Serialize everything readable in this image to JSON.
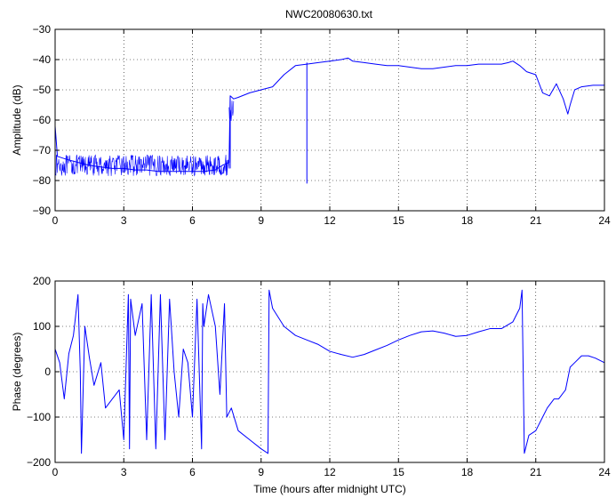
{
  "figure": {
    "title": "NWC20080630.txt"
  },
  "colors": {
    "series": "#0000ff",
    "axes": "#000000",
    "grid": "#000000",
    "background": "#ffffff"
  },
  "chart_data": [
    {
      "type": "line",
      "title": "NWC20080630.txt",
      "xlabel": "",
      "ylabel": "Amplitude (dB)",
      "xlim": [
        0,
        24
      ],
      "ylim": [
        -90,
        -30
      ],
      "xticks": [
        0,
        3,
        6,
        9,
        12,
        15,
        18,
        21,
        24
      ],
      "yticks": [
        -90,
        -80,
        -70,
        -60,
        -50,
        -40,
        -30
      ],
      "xtick_labels": [
        "0",
        "3",
        "6",
        "9",
        "12",
        "15",
        "18",
        "21",
        "24"
      ],
      "ytick_labels": [
        "−90",
        "−80",
        "−70",
        "−60",
        "−50",
        "−40",
        "−30"
      ],
      "grid": true,
      "series": [
        {
          "color": "#0000ff",
          "noisy_ranges": [
            {
              "x_from": 0.0,
              "x_to": 7.6,
              "low": -80,
              "high": -70
            },
            {
              "x_from": 7.6,
              "x_to": 7.8,
              "low": -62,
              "high": -52
            }
          ],
          "spikes": [
            {
              "x": 7.65,
              "low": -76,
              "high": -52
            },
            {
              "x": 11.0,
              "low": -81,
              "high": -41
            }
          ],
          "x": [
            0,
            0.1,
            0.5,
            1.0,
            1.5,
            2.0,
            2.5,
            3.0,
            3.5,
            4.0,
            4.5,
            5.0,
            5.5,
            6.0,
            6.5,
            7.0,
            7.3,
            7.6,
            7.65,
            7.8,
            8.0,
            8.5,
            9.0,
            9.5,
            10.0,
            10.5,
            11.0,
            11.5,
            12.0,
            12.5,
            12.8,
            13.0,
            13.5,
            14.0,
            14.5,
            15.0,
            15.5,
            16.0,
            16.5,
            17.0,
            17.5,
            18.0,
            18.5,
            19.0,
            19.5,
            19.8,
            20.0,
            20.3,
            20.6,
            21.0,
            21.3,
            21.6,
            21.9,
            22.2,
            22.4,
            22.5,
            22.7,
            23.0,
            23.5,
            24.0
          ],
          "y": [
            -62,
            -72,
            -73,
            -74,
            -75,
            -75.5,
            -76,
            -76,
            -76.5,
            -76.5,
            -77,
            -77,
            -77,
            -77,
            -77,
            -76.5,
            -75,
            -74,
            -52,
            -53,
            -52.5,
            -51,
            -50,
            -49,
            -45,
            -42,
            -41.5,
            -41,
            -40.5,
            -40,
            -39.5,
            -40.5,
            -41,
            -41.5,
            -42,
            -42,
            -42.5,
            -43,
            -43,
            -42.5,
            -42,
            -42,
            -41.5,
            -41.5,
            -41.5,
            -41,
            -40.5,
            -42,
            -44,
            -45,
            -51,
            -52,
            -48,
            -53,
            -58,
            -55,
            -50,
            -49,
            -48.5,
            -48.5
          ]
        }
      ]
    },
    {
      "type": "line",
      "title": "",
      "xlabel": "Time (hours after midnight UTC)",
      "ylabel": "Phase (degrees)",
      "xlim": [
        0,
        24
      ],
      "ylim": [
        -200,
        200
      ],
      "xticks": [
        0,
        3,
        6,
        9,
        12,
        15,
        18,
        21,
        24
      ],
      "yticks": [
        -200,
        -100,
        0,
        100,
        200
      ],
      "xtick_labels": [
        "0",
        "3",
        "6",
        "9",
        "12",
        "15",
        "18",
        "21",
        "24"
      ],
      "ytick_labels": [
        "−200",
        "−100",
        "0",
        "100",
        "200"
      ],
      "grid": true,
      "series": [
        {
          "color": "#0000ff",
          "x": [
            0,
            0.2,
            0.4,
            0.6,
            0.8,
            1.0,
            1.1,
            1.15,
            1.3,
            1.5,
            1.7,
            2.0,
            2.2,
            2.5,
            2.8,
            3.0,
            3.2,
            3.25,
            3.3,
            3.5,
            3.8,
            4.0,
            4.2,
            4.4,
            4.6,
            4.8,
            5.0,
            5.2,
            5.4,
            5.6,
            5.8,
            6.0,
            6.2,
            6.4,
            6.45,
            6.5,
            6.7,
            7.0,
            7.2,
            7.4,
            7.5,
            7.7,
            8.0,
            8.5,
            9.0,
            9.3,
            9.35,
            9.5,
            10.0,
            10.5,
            11.0,
            11.5,
            12.0,
            12.5,
            13.0,
            13.5,
            14.0,
            14.5,
            15.0,
            15.5,
            16.0,
            16.5,
            17.0,
            17.5,
            18.0,
            18.5,
            19.0,
            19.5,
            20.0,
            20.3,
            20.4,
            20.5,
            20.7,
            21.0,
            21.3,
            21.5,
            21.8,
            22.0,
            22.3,
            22.5,
            22.7,
            23.0,
            23.3,
            23.6,
            24.0
          ],
          "y": [
            50,
            20,
            -60,
            40,
            80,
            170,
            0,
            -180,
            100,
            30,
            -30,
            20,
            -80,
            -60,
            -40,
            -150,
            170,
            -170,
            160,
            80,
            150,
            -150,
            170,
            -170,
            170,
            -150,
            160,
            0,
            -100,
            50,
            20,
            -100,
            160,
            -170,
            150,
            100,
            170,
            100,
            -50,
            150,
            -100,
            -80,
            -130,
            -150,
            -170,
            -180,
            180,
            140,
            100,
            80,
            70,
            60,
            45,
            38,
            32,
            38,
            48,
            58,
            70,
            80,
            88,
            90,
            85,
            78,
            80,
            88,
            95,
            95,
            110,
            140,
            180,
            -180,
            -140,
            -130,
            -100,
            -80,
            -60,
            -60,
            -40,
            10,
            20,
            35,
            35,
            30,
            20
          ]
        }
      ]
    }
  ]
}
